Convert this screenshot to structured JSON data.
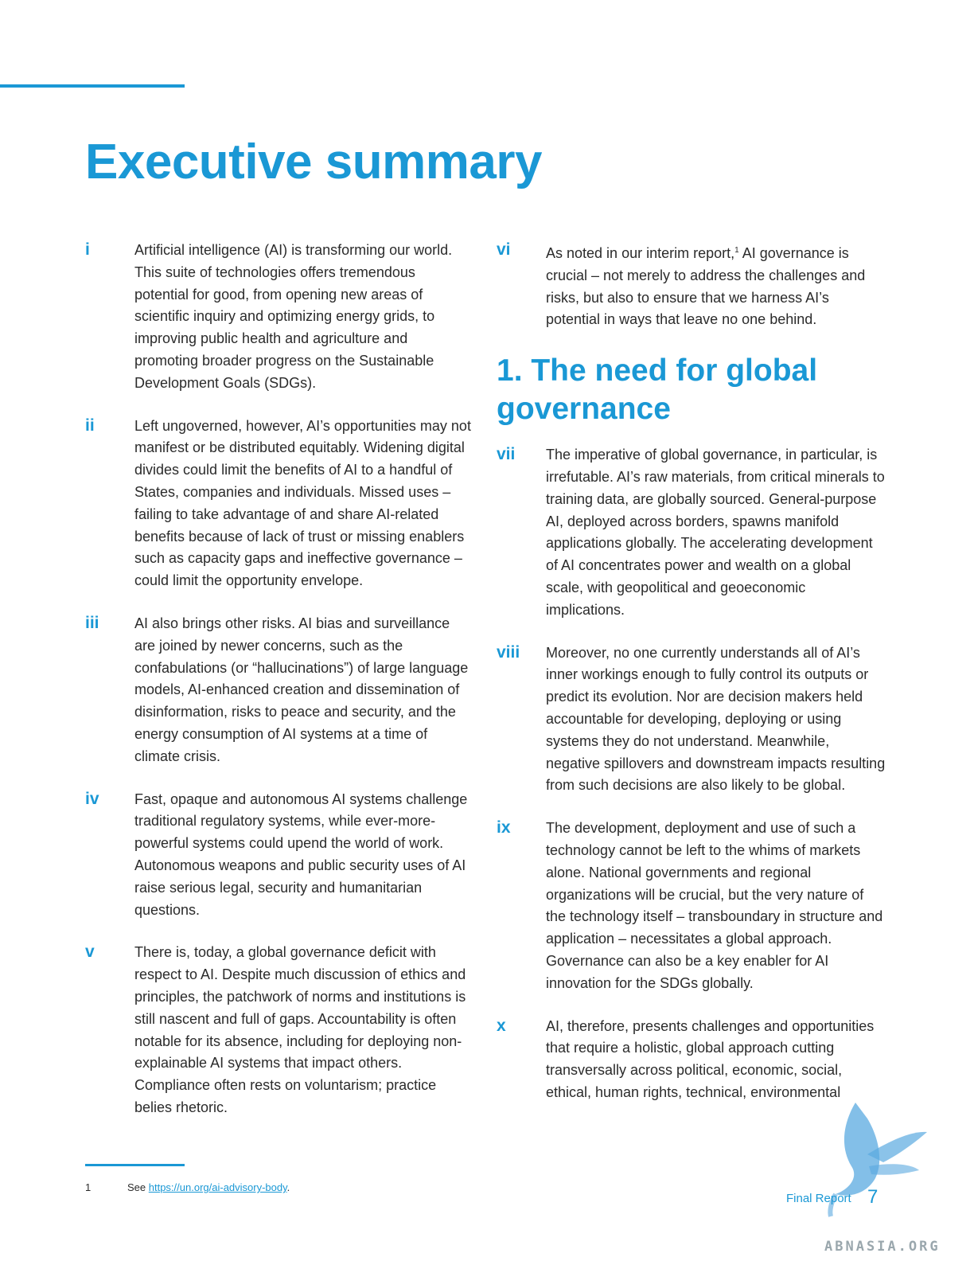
{
  "page": {
    "title": "Executive summary",
    "section_heading": "1. The need for global governance",
    "report_label": "Final Report",
    "page_number": "7",
    "watermark_text": "ABNASIA.ORG"
  },
  "left_paragraphs": [
    {
      "num": "i",
      "text": "Artificial intelligence (AI) is transforming our world. This suite of technologies offers tremendous potential for good, from opening new areas of scientific inquiry and optimizing energy grids, to improving public health and agriculture and promoting broader progress on the Sustainable Development Goals (SDGs)."
    },
    {
      "num": "ii",
      "text": "Left ungoverned, however, AI’s opportunities may not manifest or be distributed equitably. Widening digital divides could limit the benefits of AI to a handful of States, companies and individuals. Missed uses – failing to take advantage of and share AI-related benefits because of lack of trust or missing enablers such as capacity gaps and ineffective governance – could limit the opportunity envelope."
    },
    {
      "num": "iii",
      "text": "AI also brings other risks. AI bias and surveillance are joined by newer concerns, such as the confabulations (or “hallucinations”) of large language models, AI-enhanced creation and dissemination of disinformation, risks to peace and security, and the energy consumption of AI systems at a time of climate crisis."
    },
    {
      "num": "iv",
      "text": "Fast, opaque and autonomous AI systems challenge traditional regulatory systems, while ever-more-powerful systems could upend the world of work. Autonomous weapons and public security uses of AI raise serious legal, security and humanitarian questions."
    },
    {
      "num": "v",
      "text": "There is, today, a global governance deficit with respect to AI. Despite much discussion of ethics and principles, the patchwork of norms and institutions is still nascent and full of gaps. Accountability is often notable for its absence, including for deploying non-explainable AI systems that impact others. Compliance often rests on voluntarism; practice belies rhetoric."
    }
  ],
  "vi": {
    "num": "vi",
    "text_before": "As noted in our interim report,",
    "sup": "1",
    "text_after": " AI governance is crucial – not merely to address the challenges and risks, but also to ensure that we harness AI’s potential in ways that leave no one behind."
  },
  "right_paragraphs": [
    {
      "num": "vii",
      "text": "The imperative of global governance, in particular, is irrefutable. AI’s raw materials, from critical minerals to training data, are globally sourced. General-purpose AI, deployed across borders, spawns manifold applications globally. The accelerating development of AI concentrates power and wealth on a global scale, with geopolitical and geoeconomic implications."
    },
    {
      "num": "viii",
      "text": "Moreover, no one currently understands all of AI’s inner workings enough to fully control its outputs or predict its evolution. Nor are decision makers held accountable for developing, deploying or using systems they do not understand. Meanwhile, negative spillovers and downstream impacts resulting from such decisions are also likely to be global."
    },
    {
      "num": "ix",
      "text": "The development, deployment and use of such a technology cannot be left to the whims of markets alone. National governments and regional organizations will be crucial, but the very nature of the technology itself – transboundary in structure and application – necessitates a global approach. Governance can also be a key enabler for AI innovation for the SDGs globally."
    },
    {
      "num": "x",
      "text": "AI, therefore, presents challenges and opportunities that require a holistic, global approach cutting transversally across political, economic, social, ethical, human rights, technical, environmental"
    }
  ],
  "footnote": {
    "num": "1",
    "prefix": "See ",
    "link": "https://un.org/ai-advisory-body",
    "suffix": "."
  },
  "colors": {
    "accent": "#1a98d5",
    "body_text": "#2b2b2b"
  }
}
